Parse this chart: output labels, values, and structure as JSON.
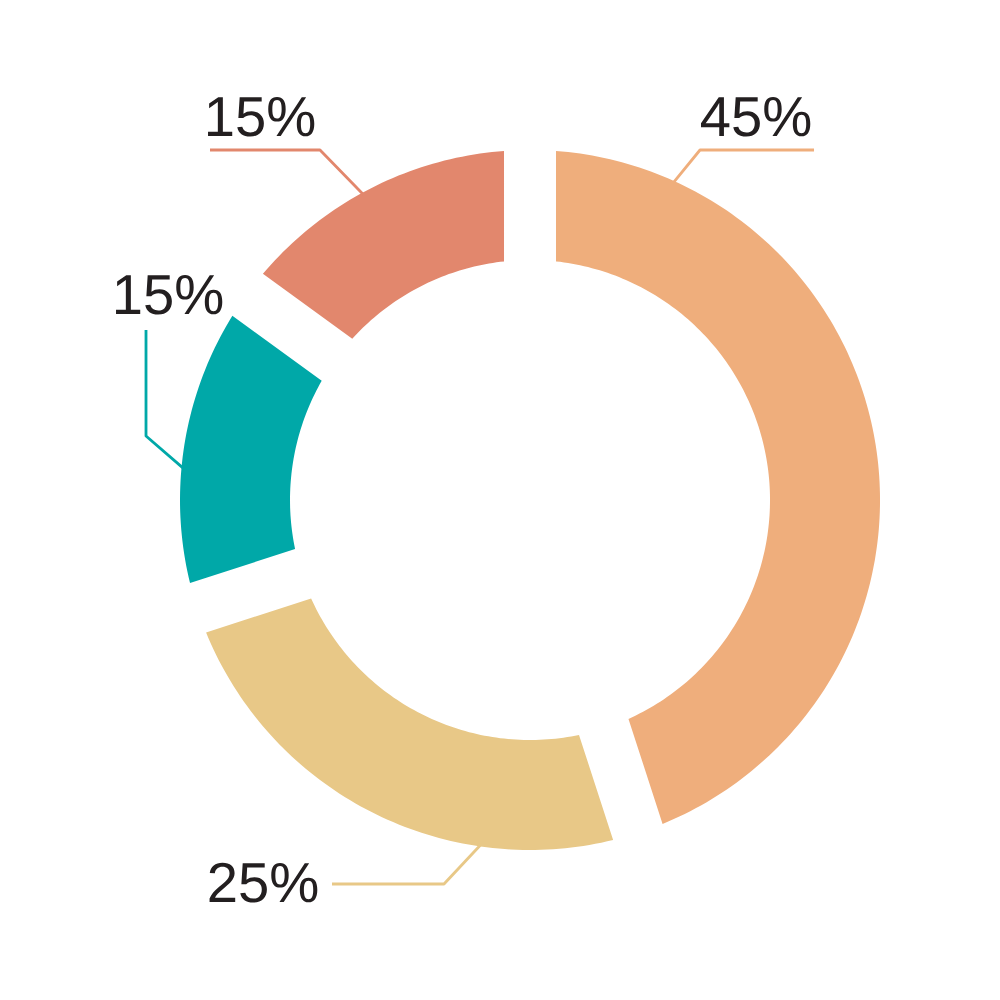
{
  "chart_data": {
    "type": "donut",
    "categories": [
      null,
      null,
      null,
      null
    ],
    "values": [
      45,
      25,
      15,
      15
    ],
    "colors": [
      "#efae7c",
      "#e8c887",
      "#00a8a8",
      "#e2876d"
    ],
    "value_labels": [
      "45%",
      "25%",
      "15%",
      "15%"
    ]
  }
}
